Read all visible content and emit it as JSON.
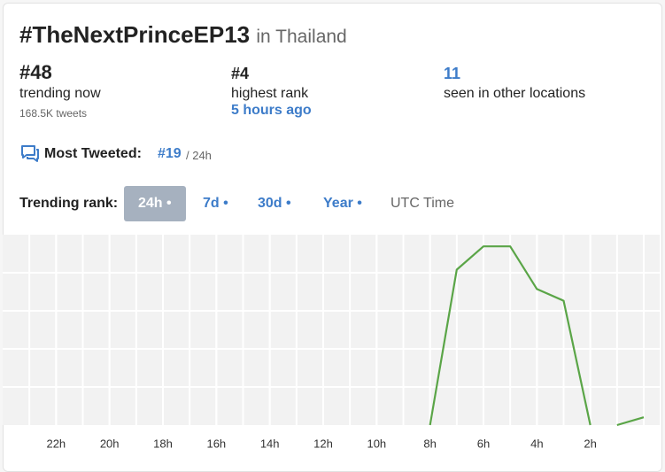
{
  "header": {
    "title": "#TheNextPrinceEP13",
    "location": "in Thailand"
  },
  "stats": [
    {
      "value": "#48",
      "label": "trending now",
      "detail": "168.5K tweets"
    },
    {
      "value": "#4",
      "label": "highest rank",
      "detail": "5 hours ago"
    },
    {
      "value": "11",
      "label": "seen in other locations"
    }
  ],
  "most_tweeted": {
    "label": "Most Tweeted:",
    "rank": "#19",
    "period": "/ 24h"
  },
  "controls": {
    "label": "Trending rank:",
    "options": [
      "24h •",
      "7d •",
      "30d •",
      "Year •"
    ],
    "active": 0,
    "timezone": "UTC Time"
  },
  "chart_data": {
    "type": "line",
    "x": [
      8,
      7,
      6,
      5,
      4,
      3,
      2,
      1.5,
      1,
      0
    ],
    "values": [
      50,
      10,
      4,
      4,
      15,
      18,
      50,
      null,
      50,
      48
    ],
    "color": "#5aa547",
    "xlim": [
      24,
      0
    ],
    "ylim": [
      50,
      1
    ],
    "xticks": [
      {
        "value": 22,
        "label": "22h"
      },
      {
        "value": 20,
        "label": "20h"
      },
      {
        "value": 18,
        "label": "18h"
      },
      {
        "value": 16,
        "label": "16h"
      },
      {
        "value": 14,
        "label": "14h"
      },
      {
        "value": 12,
        "label": "12h"
      },
      {
        "value": 10,
        "label": "10h"
      },
      {
        "value": 8,
        "label": "8h"
      },
      {
        "value": 6,
        "label": "6h"
      },
      {
        "value": 4,
        "label": "4h"
      },
      {
        "value": 2,
        "label": "2h"
      }
    ],
    "grid": true
  }
}
